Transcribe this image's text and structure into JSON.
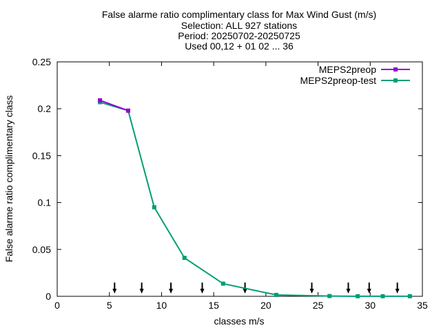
{
  "chart_data": {
    "type": "line",
    "title": [
      "False alarme ratio complimentary class  for Max Wind Gust (m/s)",
      "Selection: ALL    927 stations",
      "Period: 20250702-20250725",
      "Used 00,12 + 01 02 ... 36"
    ],
    "xlabel": "classes m/s",
    "ylabel": "False alarme ratio complimentary class",
    "xlim": [
      0,
      35
    ],
    "ylim": [
      0,
      0.25
    ],
    "xticks": [
      0,
      5,
      10,
      15,
      20,
      25,
      30,
      35
    ],
    "xtick_labels": [
      "0",
      "5",
      "10",
      "15",
      "20",
      "25",
      "30",
      "35"
    ],
    "yticks": [
      0,
      0.05,
      0.1,
      0.15,
      0.2,
      0.25
    ],
    "ytick_labels": [
      "0",
      "0.05",
      "0.1",
      "0.15",
      "0.2",
      "0.25"
    ],
    "legend_position": "top-right",
    "grid": false,
    "series": [
      {
        "name": "MEPS2preop",
        "color": "#9400d3",
        "x": [
          4.1,
          6.8
        ],
        "y": [
          0.209,
          0.198
        ]
      },
      {
        "name": "MEPS2preop-test",
        "color": "#009e73",
        "x": [
          4.1,
          6.8,
          9.3,
          12.2,
          15.9,
          21.0,
          26.1,
          28.8,
          31.2,
          33.8
        ],
        "y": [
          0.207,
          0.198,
          0.095,
          0.041,
          0.0135,
          0.0015,
          0.0003,
          0.0001,
          0.0001,
          0.0001
        ]
      }
    ],
    "arrows_x": [
      5.5,
      8.1,
      10.9,
      13.9,
      18.0,
      24.4,
      27.9,
      29.9,
      32.6
    ]
  }
}
